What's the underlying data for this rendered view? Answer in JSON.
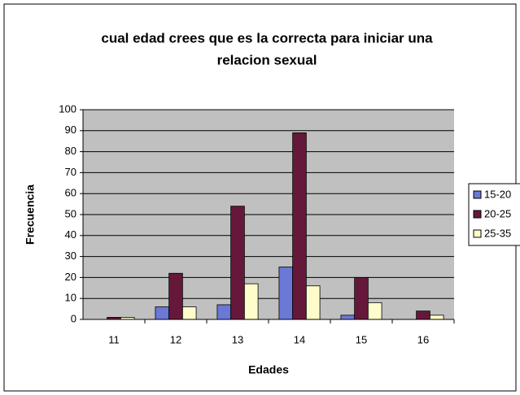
{
  "chart_data": {
    "type": "bar",
    "title": [
      "cual edad crees que es la correcta para iniciar una",
      "relacion sexual"
    ],
    "x_label": "Edades",
    "y_label": "Frecuencia",
    "categories": [
      "11",
      "12",
      "13",
      "14",
      "15",
      "16"
    ],
    "series": [
      {
        "name": "15-20",
        "color": "#6b78d6",
        "values": [
          0,
          6,
          7,
          25,
          2,
          0
        ]
      },
      {
        "name": "20-25",
        "color": "#66183a",
        "values": [
          1,
          22,
          54,
          89,
          20,
          4
        ]
      },
      {
        "name": "25-35",
        "color": "#fffccc",
        "values": [
          1,
          6,
          17,
          16,
          8,
          2
        ]
      }
    ],
    "ylim": [
      0,
      100
    ],
    "yticks": [
      0,
      10,
      20,
      30,
      40,
      50,
      60,
      70,
      80,
      90,
      100
    ],
    "grid": true,
    "legend": "right"
  }
}
